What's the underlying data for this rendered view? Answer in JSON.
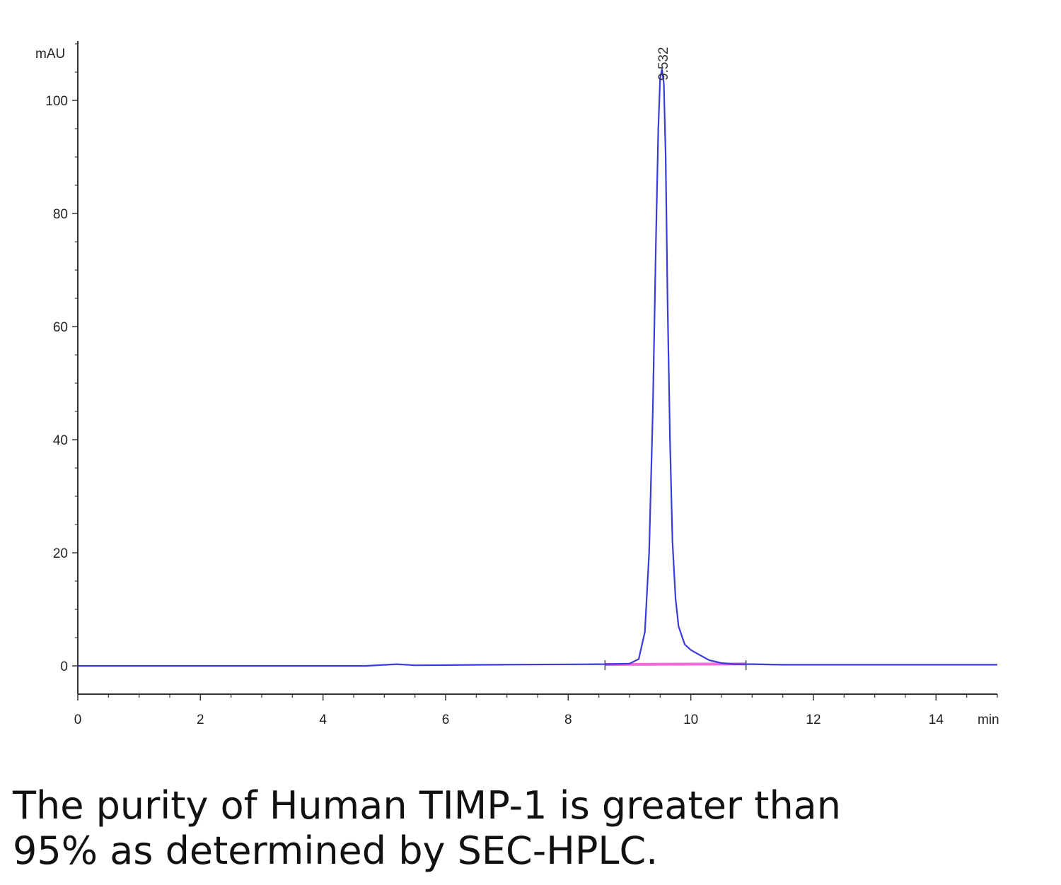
{
  "chart_data": {
    "type": "line",
    "title": "",
    "xlabel": "min",
    "ylabel": "mAU",
    "xlim": [
      0,
      15
    ],
    "ylim": [
      -5,
      110
    ],
    "x_ticks": [
      0,
      2,
      4,
      6,
      8,
      10,
      12,
      14
    ],
    "x_tick_labels": [
      "0",
      "2",
      "4",
      "6",
      "8",
      "10",
      "12",
      "14"
    ],
    "y_ticks": [
      0,
      20,
      40,
      60,
      80,
      100
    ],
    "y_tick_labels": [
      "0",
      "20",
      "40",
      "60",
      "80",
      "100"
    ],
    "grid": false,
    "series": [
      {
        "color": "#3b3bdc",
        "x": [
          0,
          4.7,
          5.2,
          5.5,
          6.8,
          8.6,
          9.0,
          9.15,
          9.25,
          9.32,
          9.38,
          9.43,
          9.47,
          9.5,
          9.53,
          9.56,
          9.59,
          9.62,
          9.66,
          9.7,
          9.75,
          9.8,
          9.9,
          10.0,
          10.1,
          10.2,
          10.3,
          10.5,
          10.7,
          11.0,
          11.5,
          12.0,
          13.0,
          14.0,
          15.0
        ],
        "y": [
          0,
          0,
          0.3,
          0.1,
          0.2,
          0.3,
          0.4,
          1.2,
          6,
          20,
          45,
          75,
          95,
          104,
          105.5,
          103,
          90,
          65,
          40,
          22,
          12,
          7,
          3.8,
          2.8,
          2.2,
          1.6,
          1.0,
          0.5,
          0.3,
          0.3,
          0.2,
          0.2,
          0.2,
          0.2,
          0.2
        ]
      }
    ],
    "baseline": {
      "color": "#ee44cc",
      "x": [
        8.6,
        10.9
      ],
      "y": [
        0.25,
        0.35
      ]
    },
    "integration_marks_x": [
      8.6,
      10.9
    ],
    "annotations": [
      {
        "text": "9.532",
        "x": 9.532,
        "y": 105.5
      }
    ]
  },
  "caption": {
    "line1": "The purity of Human TIMP-1 is greater than",
    "line2": "95% as determined by SEC-HPLC."
  }
}
